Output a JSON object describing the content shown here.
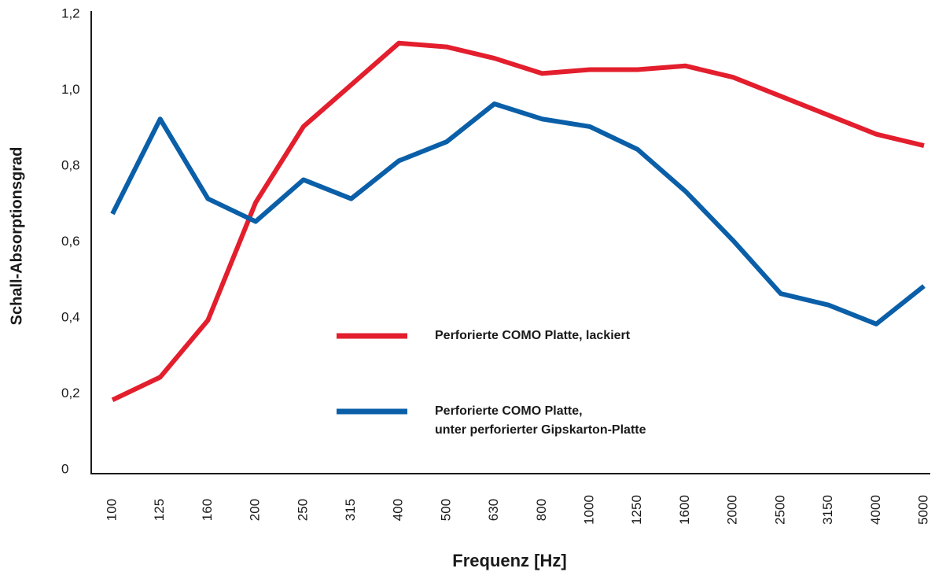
{
  "chart_data": {
    "type": "line",
    "xlabel": "Frequenz [Hz]",
    "ylabel": "Schall-Absorptionsgrad",
    "categories": [
      "100",
      "125",
      "160",
      "200",
      "250",
      "315",
      "400",
      "500",
      "630",
      "800",
      "1000",
      "1250",
      "1600",
      "2000",
      "2500",
      "3150",
      "4000",
      "5000"
    ],
    "series": [
      {
        "name": "Perforierte COMO Platte, lackiert",
        "color": "#e31e2d",
        "values": [
          0.19,
          0.25,
          0.4,
          0.71,
          0.91,
          1.02,
          1.13,
          1.12,
          1.09,
          1.05,
          1.06,
          1.06,
          1.07,
          1.04,
          0.99,
          0.94,
          0.89,
          0.86
        ]
      },
      {
        "name": "Perforierte COMO Platte,\nunter perforierter Gipskarton-Platte",
        "color": "#0a5fa8",
        "values": [
          0.68,
          0.93,
          0.72,
          0.66,
          0.77,
          0.72,
          0.82,
          0.87,
          0.97,
          0.93,
          0.91,
          0.85,
          0.74,
          0.61,
          0.47,
          0.44,
          0.39,
          0.49
        ]
      }
    ],
    "ylim": [
      0,
      1.2
    ],
    "yticks": [
      0,
      {
        "value": 0.2,
        "label": "0,2"
      },
      {
        "value": 0.4,
        "label": "0,4"
      },
      {
        "value": 0.6,
        "label": "0,6"
      },
      {
        "value": 0.8,
        "label": "0,8"
      },
      {
        "value": 1.0,
        "label": "1,0"
      },
      {
        "value": 1.2,
        "label": "1,2"
      }
    ],
    "grid": false
  }
}
